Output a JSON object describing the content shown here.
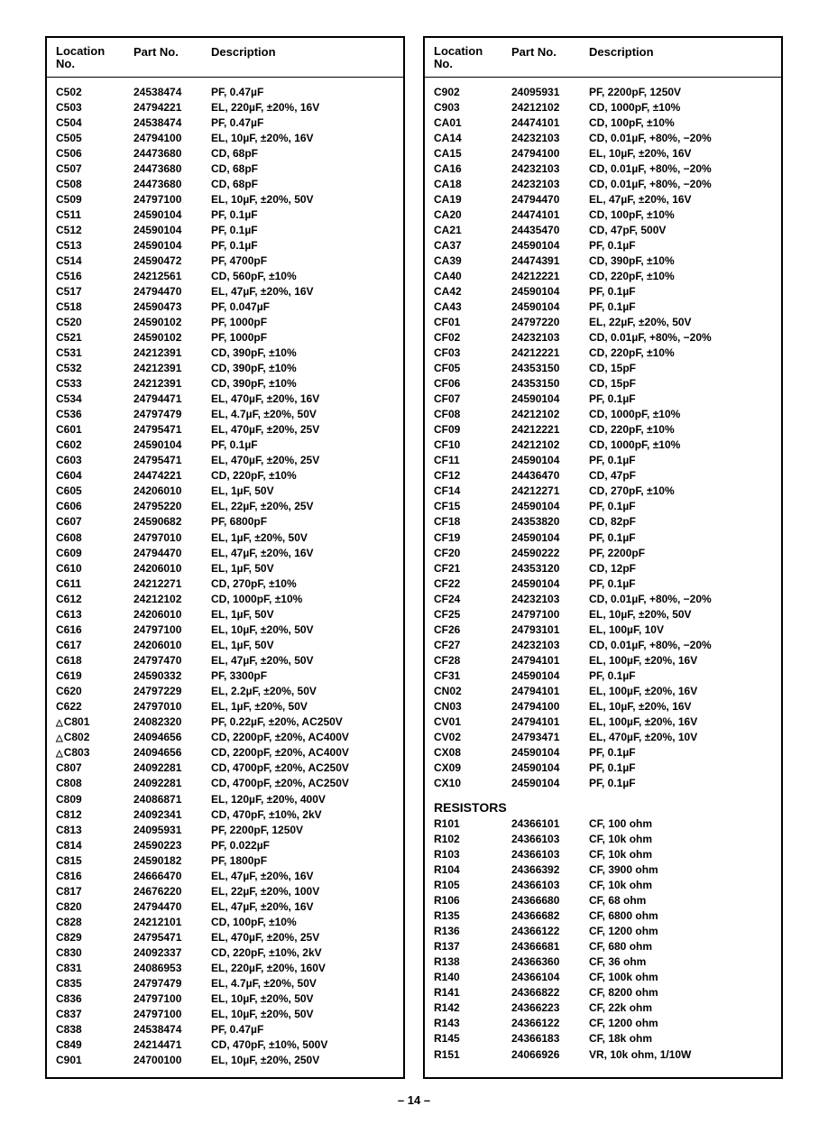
{
  "headers": {
    "loc": "Location\nNo.",
    "part": "Part No.",
    "desc": "Description"
  },
  "page_number": "– 14 –",
  "sections": {
    "resistors_title": "RESISTORS"
  },
  "left": [
    {
      "loc": "C502",
      "part": "24538474",
      "desc": "PF, 0.47µF"
    },
    {
      "loc": "C503",
      "part": "24794221",
      "desc": "EL, 220µF, ±20%, 16V"
    },
    {
      "loc": "C504",
      "part": "24538474",
      "desc": "PF, 0.47µF"
    },
    {
      "loc": "C505",
      "part": "24794100",
      "desc": "EL, 10µF, ±20%, 16V"
    },
    {
      "loc": "C506",
      "part": "24473680",
      "desc": "CD, 68pF"
    },
    {
      "loc": "C507",
      "part": "24473680",
      "desc": "CD, 68pF"
    },
    {
      "loc": "C508",
      "part": "24473680",
      "desc": "CD, 68pF"
    },
    {
      "loc": "C509",
      "part": "24797100",
      "desc": "EL, 10µF, ±20%, 50V"
    },
    {
      "loc": "C511",
      "part": "24590104",
      "desc": "PF, 0.1µF"
    },
    {
      "loc": "C512",
      "part": "24590104",
      "desc": "PF, 0.1µF"
    },
    {
      "loc": "C513",
      "part": "24590104",
      "desc": "PF, 0.1µF"
    },
    {
      "loc": "C514",
      "part": "24590472",
      "desc": "PF, 4700pF"
    },
    {
      "loc": "C516",
      "part": "24212561",
      "desc": "CD, 560pF, ±10%"
    },
    {
      "loc": "C517",
      "part": "24794470",
      "desc": "EL, 47µF, ±20%, 16V"
    },
    {
      "loc": "C518",
      "part": "24590473",
      "desc": "PF, 0.047µF"
    },
    {
      "loc": "C520",
      "part": "24590102",
      "desc": "PF, 1000pF"
    },
    {
      "loc": "C521",
      "part": "24590102",
      "desc": "PF, 1000pF"
    },
    {
      "loc": "C531",
      "part": "24212391",
      "desc": "CD, 390pF, ±10%"
    },
    {
      "loc": "C532",
      "part": "24212391",
      "desc": "CD, 390pF, ±10%"
    },
    {
      "loc": "C533",
      "part": "24212391",
      "desc": "CD, 390pF, ±10%"
    },
    {
      "loc": "C534",
      "part": "24794471",
      "desc": "EL, 470µF, ±20%, 16V"
    },
    {
      "loc": "C536",
      "part": "24797479",
      "desc": "EL, 4.7µF, ±20%, 50V"
    },
    {
      "loc": "C601",
      "part": "24795471",
      "desc": "EL, 470µF, ±20%, 25V"
    },
    {
      "loc": "C602",
      "part": "24590104",
      "desc": "PF, 0.1µF"
    },
    {
      "loc": "C603",
      "part": "24795471",
      "desc": "EL, 470µF, ±20%, 25V"
    },
    {
      "loc": "C604",
      "part": "24474221",
      "desc": "CD, 220pF, ±10%"
    },
    {
      "loc": "C605",
      "part": "24206010",
      "desc": "EL, 1µF, 50V"
    },
    {
      "loc": "C606",
      "part": "24795220",
      "desc": "EL, 22µF, ±20%, 25V"
    },
    {
      "loc": "C607",
      "part": "24590682",
      "desc": "PF, 6800pF"
    },
    {
      "loc": "C608",
      "part": "24797010",
      "desc": "EL, 1µF, ±20%, 50V"
    },
    {
      "loc": "C609",
      "part": "24794470",
      "desc": "EL, 47µF, ±20%, 16V"
    },
    {
      "loc": "C610",
      "part": "24206010",
      "desc": "EL, 1µF, 50V"
    },
    {
      "loc": "C611",
      "part": "24212271",
      "desc": "CD, 270pF, ±10%"
    },
    {
      "loc": "C612",
      "part": "24212102",
      "desc": "CD, 1000pF, ±10%"
    },
    {
      "loc": "C613",
      "part": "24206010",
      "desc": "EL, 1µF, 50V"
    },
    {
      "loc": "C616",
      "part": "24797100",
      "desc": "EL, 10µF, ±20%, 50V"
    },
    {
      "loc": "C617",
      "part": "24206010",
      "desc": "EL, 1µF, 50V"
    },
    {
      "loc": "C618",
      "part": "24797470",
      "desc": "EL, 47µF, ±20%, 50V"
    },
    {
      "loc": "C619",
      "part": "24590332",
      "desc": "PF, 3300pF"
    },
    {
      "loc": "C620",
      "part": "24797229",
      "desc": "EL, 2.2µF, ±20%, 50V"
    },
    {
      "loc": "C622",
      "part": "24797010",
      "desc": "EL, 1µF, ±20%, 50V"
    },
    {
      "loc": "C801",
      "tri": true,
      "part": "24082320",
      "desc": "PF, 0.22µF, ±20%, AC250V"
    },
    {
      "loc": "C802",
      "tri": true,
      "part": "24094656",
      "desc": "CD, 2200pF, ±20%, AC400V"
    },
    {
      "loc": "C803",
      "tri": true,
      "part": "24094656",
      "desc": "CD, 2200pF, ±20%, AC400V"
    },
    {
      "loc": "C807",
      "part": "24092281",
      "desc": "CD, 4700pF, ±20%, AC250V"
    },
    {
      "loc": "C808",
      "part": "24092281",
      "desc": "CD, 4700pF, ±20%, AC250V"
    },
    {
      "loc": "C809",
      "part": "24086871",
      "desc": "EL, 120µF, ±20%, 400V"
    },
    {
      "loc": "C812",
      "part": "24092341",
      "desc": "CD, 470pF, ±10%, 2kV"
    },
    {
      "loc": "C813",
      "part": "24095931",
      "desc": "PF, 2200pF, 1250V"
    },
    {
      "loc": "C814",
      "part": "24590223",
      "desc": "PF, 0.022µF"
    },
    {
      "loc": "C815",
      "part": "24590182",
      "desc": "PF, 1800pF"
    },
    {
      "loc": "C816",
      "part": "24666470",
      "desc": "EL, 47µF, ±20%, 16V"
    },
    {
      "loc": "C817",
      "part": "24676220",
      "desc": "EL, 22µF, ±20%, 100V"
    },
    {
      "loc": "C820",
      "part": "24794470",
      "desc": "EL, 47µF, ±20%, 16V"
    },
    {
      "loc": "C828",
      "part": "24212101",
      "desc": "CD, 100pF, ±10%"
    },
    {
      "loc": "C829",
      "part": "24795471",
      "desc": "EL, 470µF, ±20%, 25V"
    },
    {
      "loc": "C830",
      "part": "24092337",
      "desc": "CD, 220pF, ±10%, 2kV"
    },
    {
      "loc": "C831",
      "part": "24086953",
      "desc": "EL, 220µF, ±20%, 160V"
    },
    {
      "loc": "C835",
      "part": "24797479",
      "desc": "EL, 4.7µF, ±20%, 50V"
    },
    {
      "loc": "C836",
      "part": "24797100",
      "desc": "EL, 10µF, ±20%, 50V"
    },
    {
      "loc": "C837",
      "part": "24797100",
      "desc": "EL, 10µF, ±20%, 50V"
    },
    {
      "loc": "C838",
      "part": "24538474",
      "desc": "PF, 0.47µF"
    },
    {
      "loc": "C849",
      "part": "24214471",
      "desc": "CD, 470pF, ±10%, 500V"
    },
    {
      "loc": "C901",
      "part": "24700100",
      "desc": "EL, 10µF, ±20%, 250V"
    }
  ],
  "right_caps": [
    {
      "loc": "C902",
      "part": "24095931",
      "desc": "PF, 2200pF, 1250V"
    },
    {
      "loc": "C903",
      "part": "24212102",
      "desc": "CD, 1000pF, ±10%"
    },
    {
      "loc": "CA01",
      "part": "24474101",
      "desc": "CD, 100pF, ±10%"
    },
    {
      "loc": "CA14",
      "part": "24232103",
      "desc": "CD, 0.01µF, +80%, −20%"
    },
    {
      "loc": "CA15",
      "part": "24794100",
      "desc": "EL, 10µF, ±20%, 16V"
    },
    {
      "loc": "CA16",
      "part": "24232103",
      "desc": "CD, 0.01µF, +80%, −20%"
    },
    {
      "loc": "CA18",
      "part": "24232103",
      "desc": "CD, 0.01µF, +80%, −20%"
    },
    {
      "loc": "CA19",
      "part": "24794470",
      "desc": "EL, 47µF, ±20%, 16V"
    },
    {
      "loc": "CA20",
      "part": "24474101",
      "desc": "CD, 100pF, ±10%"
    },
    {
      "loc": "CA21",
      "part": "24435470",
      "desc": "CD, 47pF, 500V"
    },
    {
      "loc": "CA37",
      "part": "24590104",
      "desc": "PF, 0.1µF"
    },
    {
      "loc": "CA39",
      "part": "24474391",
      "desc": "CD, 390pF, ±10%"
    },
    {
      "loc": "CA40",
      "part": "24212221",
      "desc": "CD, 220pF, ±10%"
    },
    {
      "loc": "CA42",
      "part": "24590104",
      "desc": "PF, 0.1µF"
    },
    {
      "loc": "CA43",
      "part": "24590104",
      "desc": "PF, 0.1µF"
    },
    {
      "loc": "CF01",
      "part": "24797220",
      "desc": "EL, 22µF, ±20%, 50V"
    },
    {
      "loc": "CF02",
      "part": "24232103",
      "desc": "CD, 0.01µF, +80%, −20%"
    },
    {
      "loc": "CF03",
      "part": "24212221",
      "desc": "CD, 220pF, ±10%"
    },
    {
      "loc": "CF05",
      "part": "24353150",
      "desc": "CD, 15pF"
    },
    {
      "loc": "CF06",
      "part": "24353150",
      "desc": "CD, 15pF"
    },
    {
      "loc": "CF07",
      "part": "24590104",
      "desc": "PF, 0.1µF"
    },
    {
      "loc": "CF08",
      "part": "24212102",
      "desc": "CD, 1000pF, ±10%"
    },
    {
      "loc": "CF09",
      "part": "24212221",
      "desc": "CD, 220pF, ±10%"
    },
    {
      "loc": "CF10",
      "part": "24212102",
      "desc": "CD, 1000pF, ±10%"
    },
    {
      "loc": "CF11",
      "part": "24590104",
      "desc": "PF, 0.1µF"
    },
    {
      "loc": "CF12",
      "part": "24436470",
      "desc": "CD, 47pF"
    },
    {
      "loc": "CF14",
      "part": "24212271",
      "desc": "CD, 270pF, ±10%"
    },
    {
      "loc": "CF15",
      "part": "24590104",
      "desc": "PF, 0.1µF"
    },
    {
      "loc": "CF18",
      "part": "24353820",
      "desc": "CD, 82pF"
    },
    {
      "loc": "CF19",
      "part": "24590104",
      "desc": "PF, 0.1µF"
    },
    {
      "loc": "CF20",
      "part": "24590222",
      "desc": "PF, 2200pF"
    },
    {
      "loc": "CF21",
      "part": "24353120",
      "desc": "CD, 12pF"
    },
    {
      "loc": "CF22",
      "part": "24590104",
      "desc": "PF, 0.1µF"
    },
    {
      "loc": "CF24",
      "part": "24232103",
      "desc": "CD, 0.01µF, +80%, −20%"
    },
    {
      "loc": "CF25",
      "part": "24797100",
      "desc": "EL, 10µF, ±20%, 50V"
    },
    {
      "loc": "CF26",
      "part": "24793101",
      "desc": "EL, 100µF, 10V"
    },
    {
      "loc": "CF27",
      "part": "24232103",
      "desc": "CD, 0.01µF, +80%, −20%"
    },
    {
      "loc": "CF28",
      "part": "24794101",
      "desc": "EL, 100µF, ±20%, 16V"
    },
    {
      "loc": "CF31",
      "part": "24590104",
      "desc": "PF, 0.1µF"
    },
    {
      "loc": "CN02",
      "part": "24794101",
      "desc": "EL, 100µF, ±20%, 16V"
    },
    {
      "loc": "CN03",
      "part": "24794100",
      "desc": "EL, 10µF, ±20%, 16V"
    },
    {
      "loc": "CV01",
      "part": "24794101",
      "desc": "EL, 100µF, ±20%, 16V"
    },
    {
      "loc": "CV02",
      "part": "24793471",
      "desc": "EL, 470µF, ±20%, 10V"
    },
    {
      "loc": "CX08",
      "part": "24590104",
      "desc": "PF, 0.1µF"
    },
    {
      "loc": "CX09",
      "part": "24590104",
      "desc": "PF, 0.1µF"
    },
    {
      "loc": "CX10",
      "part": "24590104",
      "desc": "PF, 0.1µF"
    }
  ],
  "right_res": [
    {
      "loc": "R101",
      "part": "24366101",
      "desc": "CF, 100 ohm"
    },
    {
      "loc": "R102",
      "part": "24366103",
      "desc": "CF, 10k ohm"
    },
    {
      "loc": "R103",
      "part": "24366103",
      "desc": "CF, 10k ohm"
    },
    {
      "loc": "R104",
      "part": "24366392",
      "desc": "CF, 3900 ohm"
    },
    {
      "loc": "R105",
      "part": "24366103",
      "desc": "CF, 10k ohm"
    },
    {
      "loc": "R106",
      "part": "24366680",
      "desc": "CF, 68 ohm"
    },
    {
      "loc": "R135",
      "part": "24366682",
      "desc": "CF, 6800 ohm"
    },
    {
      "loc": "R136",
      "part": "24366122",
      "desc": "CF, 1200 ohm"
    },
    {
      "loc": "R137",
      "part": "24366681",
      "desc": "CF, 680 ohm"
    },
    {
      "loc": "R138",
      "part": "24366360",
      "desc": "CF, 36 ohm"
    },
    {
      "loc": "R140",
      "part": "24366104",
      "desc": "CF, 100k ohm"
    },
    {
      "loc": "R141",
      "part": "24366822",
      "desc": "CF, 8200 ohm"
    },
    {
      "loc": "R142",
      "part": "24366223",
      "desc": "CF, 22k ohm"
    },
    {
      "loc": "R143",
      "part": "24366122",
      "desc": "CF, 1200 ohm"
    },
    {
      "loc": "R145",
      "part": "24366183",
      "desc": "CF, 18k ohm"
    },
    {
      "loc": "R151",
      "part": "24066926",
      "desc": "VR, 10k ohm, 1/10W"
    }
  ]
}
